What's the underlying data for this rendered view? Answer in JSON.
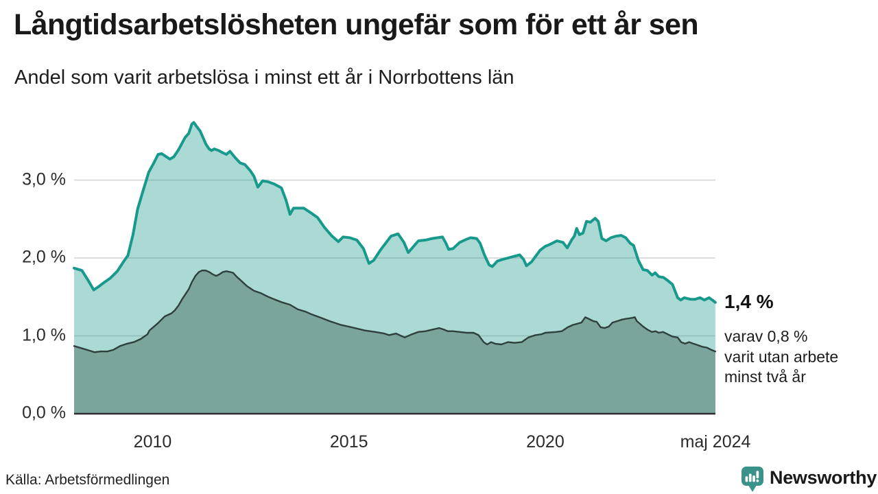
{
  "header": {
    "title": "Långtidsarbetslösheten ungefär som för ett år sen",
    "subtitle": "Andel som varit arbetslösa i minst ett år i Norrbottens län"
  },
  "annotations": {
    "latest_total": "1,4 %",
    "latest_detail": "varav 0,8 %\nvarit utan arbete\nminst två år"
  },
  "footer": {
    "source": "Källa: Arbetsförmedlingen",
    "brand": "Newsworthy",
    "brand_color": "#3A928A"
  },
  "chart_data": {
    "type": "area",
    "title": "Långtidsarbetslösheten ungefär som för ett år sen",
    "subtitle": "Andel som varit arbetslösa i minst ett år i Norrbottens län",
    "region": "Norrbottens län",
    "unit": "%",
    "grid": true,
    "legend": "none (direct annotations at line ends)",
    "x_axis": {
      "range": [
        2008.0,
        2024.3333
      ],
      "ticks": [
        {
          "t": 2010,
          "label": "2010"
        },
        {
          "t": 2015,
          "label": "2015"
        },
        {
          "t": 2020,
          "label": "2020"
        },
        {
          "t": 2024.3333,
          "label": "maj 2024"
        }
      ]
    },
    "y_axis": {
      "range": [
        0,
        3.85
      ],
      "ticks": [
        {
          "v": 3,
          "label": "3,0 %"
        },
        {
          "v": 2,
          "label": "2,0 %"
        },
        {
          "v": 1,
          "label": "1,0 %"
        },
        {
          "v": 0,
          "label": "0,0 %"
        }
      ]
    },
    "series": [
      {
        "id": "one-year",
        "name": "Andel arbetslösa i minst ett år",
        "latest_label": "1,4 %",
        "latest_value": 1.4,
        "color": "#17998B",
        "fill": "#17998B",
        "fill_opacity": 0.36,
        "points": [
          [
            2008.0,
            1.87
          ],
          [
            2008.2,
            1.84
          ],
          [
            2008.35,
            1.72
          ],
          [
            2008.5,
            1.59
          ],
          [
            2008.62,
            1.63
          ],
          [
            2008.75,
            1.68
          ],
          [
            2008.92,
            1.74
          ],
          [
            2009.1,
            1.83
          ],
          [
            2009.27,
            1.96
          ],
          [
            2009.37,
            2.03
          ],
          [
            2009.5,
            2.3
          ],
          [
            2009.62,
            2.63
          ],
          [
            2009.76,
            2.87
          ],
          [
            2009.9,
            3.1
          ],
          [
            2010.05,
            3.24
          ],
          [
            2010.14,
            3.33
          ],
          [
            2010.23,
            3.34
          ],
          [
            2010.44,
            3.27
          ],
          [
            2010.54,
            3.3
          ],
          [
            2010.66,
            3.39
          ],
          [
            2010.83,
            3.55
          ],
          [
            2010.92,
            3.6
          ],
          [
            2011.0,
            3.72
          ],
          [
            2011.05,
            3.74
          ],
          [
            2011.12,
            3.69
          ],
          [
            2011.21,
            3.63
          ],
          [
            2011.28,
            3.55
          ],
          [
            2011.36,
            3.46
          ],
          [
            2011.44,
            3.4
          ],
          [
            2011.5,
            3.38
          ],
          [
            2011.57,
            3.4
          ],
          [
            2011.68,
            3.38
          ],
          [
            2011.79,
            3.35
          ],
          [
            2011.88,
            3.33
          ],
          [
            2011.97,
            3.37
          ],
          [
            2012.1,
            3.29
          ],
          [
            2012.23,
            3.22
          ],
          [
            2012.35,
            3.2
          ],
          [
            2012.49,
            3.12
          ],
          [
            2012.58,
            3.05
          ],
          [
            2012.68,
            2.91
          ],
          [
            2012.8,
            2.99
          ],
          [
            2012.93,
            2.98
          ],
          [
            2013.1,
            2.95
          ],
          [
            2013.28,
            2.9
          ],
          [
            2013.4,
            2.74
          ],
          [
            2013.5,
            2.56
          ],
          [
            2013.59,
            2.64
          ],
          [
            2013.85,
            2.64
          ],
          [
            2014.03,
            2.58
          ],
          [
            2014.2,
            2.52
          ],
          [
            2014.38,
            2.39
          ],
          [
            2014.55,
            2.29
          ],
          [
            2014.73,
            2.21
          ],
          [
            2014.85,
            2.27
          ],
          [
            2015.02,
            2.26
          ],
          [
            2015.2,
            2.23
          ],
          [
            2015.37,
            2.12
          ],
          [
            2015.51,
            1.93
          ],
          [
            2015.63,
            1.97
          ],
          [
            2015.8,
            2.1
          ],
          [
            2015.95,
            2.2
          ],
          [
            2016.07,
            2.28
          ],
          [
            2016.25,
            2.31
          ],
          [
            2016.4,
            2.2
          ],
          [
            2016.51,
            2.07
          ],
          [
            2016.77,
            2.22
          ],
          [
            2016.95,
            2.23
          ],
          [
            2017.12,
            2.25
          ],
          [
            2017.38,
            2.27
          ],
          [
            2017.47,
            2.19
          ],
          [
            2017.54,
            2.11
          ],
          [
            2017.65,
            2.12
          ],
          [
            2017.82,
            2.2
          ],
          [
            2017.99,
            2.24
          ],
          [
            2018.1,
            2.26
          ],
          [
            2018.25,
            2.25
          ],
          [
            2018.34,
            2.19
          ],
          [
            2018.45,
            2.04
          ],
          [
            2018.57,
            1.91
          ],
          [
            2018.65,
            1.89
          ],
          [
            2018.78,
            1.96
          ],
          [
            2018.9,
            1.98
          ],
          [
            2019.05,
            2.0
          ],
          [
            2019.2,
            2.02
          ],
          [
            2019.35,
            2.04
          ],
          [
            2019.45,
            1.98
          ],
          [
            2019.52,
            1.9
          ],
          [
            2019.65,
            1.95
          ],
          [
            2019.87,
            2.1
          ],
          [
            2020.0,
            2.15
          ],
          [
            2020.1,
            2.17
          ],
          [
            2020.3,
            2.22
          ],
          [
            2020.45,
            2.2
          ],
          [
            2020.56,
            2.13
          ],
          [
            2020.68,
            2.24
          ],
          [
            2020.74,
            2.28
          ],
          [
            2020.8,
            2.38
          ],
          [
            2020.87,
            2.3
          ],
          [
            2020.96,
            2.32
          ],
          [
            2021.05,
            2.47
          ],
          [
            2021.15,
            2.46
          ],
          [
            2021.27,
            2.51
          ],
          [
            2021.35,
            2.47
          ],
          [
            2021.44,
            2.25
          ],
          [
            2021.55,
            2.22
          ],
          [
            2021.67,
            2.26
          ],
          [
            2021.8,
            2.28
          ],
          [
            2021.93,
            2.29
          ],
          [
            2022.05,
            2.26
          ],
          [
            2022.16,
            2.19
          ],
          [
            2022.25,
            2.16
          ],
          [
            2022.37,
            1.97
          ],
          [
            2022.49,
            1.85
          ],
          [
            2022.6,
            1.84
          ],
          [
            2022.72,
            1.78
          ],
          [
            2022.8,
            1.81
          ],
          [
            2022.89,
            1.76
          ],
          [
            2023.01,
            1.75
          ],
          [
            2023.12,
            1.71
          ],
          [
            2023.24,
            1.66
          ],
          [
            2023.37,
            1.49
          ],
          [
            2023.45,
            1.46
          ],
          [
            2023.54,
            1.49
          ],
          [
            2023.7,
            1.47
          ],
          [
            2023.82,
            1.47
          ],
          [
            2023.94,
            1.49
          ],
          [
            2024.05,
            1.46
          ],
          [
            2024.17,
            1.49
          ],
          [
            2024.28,
            1.45
          ],
          [
            2024.33,
            1.43
          ]
        ]
      },
      {
        "id": "two-year",
        "name": "Varav utan arbete i minst två år",
        "latest_label": "0,8 %",
        "latest_value": 0.8,
        "color": "#2E403C",
        "fill": "#7AA49C",
        "fill_opacity": 1,
        "points": [
          [
            2008.0,
            0.87
          ],
          [
            2008.2,
            0.84
          ],
          [
            2008.4,
            0.81
          ],
          [
            2008.52,
            0.79
          ],
          [
            2008.68,
            0.8
          ],
          [
            2008.85,
            0.8
          ],
          [
            2009.0,
            0.82
          ],
          [
            2009.17,
            0.87
          ],
          [
            2009.35,
            0.9
          ],
          [
            2009.52,
            0.92
          ],
          [
            2009.7,
            0.96
          ],
          [
            2009.87,
            1.02
          ],
          [
            2009.92,
            1.07
          ],
          [
            2010.13,
            1.16
          ],
          [
            2010.31,
            1.25
          ],
          [
            2010.48,
            1.29
          ],
          [
            2010.57,
            1.33
          ],
          [
            2010.66,
            1.39
          ],
          [
            2010.75,
            1.47
          ],
          [
            2010.83,
            1.53
          ],
          [
            2010.92,
            1.6
          ],
          [
            2011.0,
            1.69
          ],
          [
            2011.09,
            1.77
          ],
          [
            2011.18,
            1.82
          ],
          [
            2011.26,
            1.84
          ],
          [
            2011.35,
            1.84
          ],
          [
            2011.44,
            1.82
          ],
          [
            2011.53,
            1.79
          ],
          [
            2011.62,
            1.77
          ],
          [
            2011.7,
            1.79
          ],
          [
            2011.79,
            1.82
          ],
          [
            2011.88,
            1.83
          ],
          [
            2011.97,
            1.82
          ],
          [
            2012.05,
            1.81
          ],
          [
            2012.14,
            1.76
          ],
          [
            2012.23,
            1.72
          ],
          [
            2012.4,
            1.64
          ],
          [
            2012.58,
            1.58
          ],
          [
            2012.75,
            1.55
          ],
          [
            2012.95,
            1.5
          ],
          [
            2013.1,
            1.47
          ],
          [
            2013.3,
            1.43
          ],
          [
            2013.5,
            1.4
          ],
          [
            2013.7,
            1.34
          ],
          [
            2013.9,
            1.31
          ],
          [
            2014.03,
            1.28
          ],
          [
            2014.3,
            1.23
          ],
          [
            2014.5,
            1.19
          ],
          [
            2014.8,
            1.14
          ],
          [
            2015.07,
            1.11
          ],
          [
            2015.4,
            1.07
          ],
          [
            2015.67,
            1.05
          ],
          [
            2015.9,
            1.03
          ],
          [
            2016.02,
            1.01
          ],
          [
            2016.2,
            1.03
          ],
          [
            2016.42,
            0.98
          ],
          [
            2016.6,
            1.02
          ],
          [
            2016.77,
            1.05
          ],
          [
            2016.95,
            1.06
          ],
          [
            2017.12,
            1.08
          ],
          [
            2017.3,
            1.1
          ],
          [
            2017.42,
            1.08
          ],
          [
            2017.52,
            1.06
          ],
          [
            2017.65,
            1.06
          ],
          [
            2017.82,
            1.05
          ],
          [
            2018.0,
            1.04
          ],
          [
            2018.17,
            1.04
          ],
          [
            2018.3,
            1.01
          ],
          [
            2018.43,
            0.92
          ],
          [
            2018.52,
            0.89
          ],
          [
            2018.62,
            0.92
          ],
          [
            2018.72,
            0.9
          ],
          [
            2018.88,
            0.89
          ],
          [
            2019.05,
            0.92
          ],
          [
            2019.22,
            0.91
          ],
          [
            2019.4,
            0.92
          ],
          [
            2019.57,
            0.98
          ],
          [
            2019.75,
            1.01
          ],
          [
            2019.9,
            1.02
          ],
          [
            2020.0,
            1.04
          ],
          [
            2020.27,
            1.05
          ],
          [
            2020.42,
            1.06
          ],
          [
            2020.57,
            1.11
          ],
          [
            2020.7,
            1.14
          ],
          [
            2020.92,
            1.17
          ],
          [
            2021.02,
            1.24
          ],
          [
            2021.1,
            1.22
          ],
          [
            2021.22,
            1.19
          ],
          [
            2021.31,
            1.18
          ],
          [
            2021.41,
            1.11
          ],
          [
            2021.51,
            1.1
          ],
          [
            2021.62,
            1.12
          ],
          [
            2021.71,
            1.17
          ],
          [
            2021.84,
            1.19
          ],
          [
            2021.96,
            1.21
          ],
          [
            2022.07,
            1.22
          ],
          [
            2022.2,
            1.23
          ],
          [
            2022.28,
            1.24
          ],
          [
            2022.33,
            1.19
          ],
          [
            2022.49,
            1.12
          ],
          [
            2022.6,
            1.08
          ],
          [
            2022.72,
            1.05
          ],
          [
            2022.81,
            1.06
          ],
          [
            2022.89,
            1.04
          ],
          [
            2023.0,
            1.05
          ],
          [
            2023.12,
            1.02
          ],
          [
            2023.24,
            0.99
          ],
          [
            2023.37,
            0.98
          ],
          [
            2023.46,
            0.92
          ],
          [
            2023.56,
            0.9
          ],
          [
            2023.66,
            0.92
          ],
          [
            2023.77,
            0.9
          ],
          [
            2023.89,
            0.88
          ],
          [
            2024.0,
            0.86
          ],
          [
            2024.11,
            0.85
          ],
          [
            2024.23,
            0.82
          ],
          [
            2024.33,
            0.8
          ]
        ]
      }
    ]
  }
}
